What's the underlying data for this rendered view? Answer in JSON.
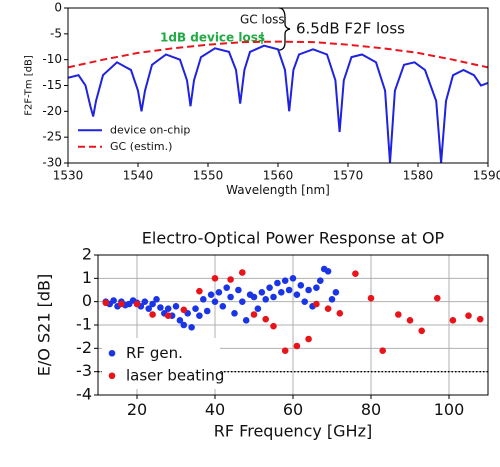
{
  "chart_data": [
    {
      "type": "line",
      "xlabel": "Wavelength [nm]",
      "ylabel": "F2F-Tm [dB]",
      "xlim": [
        1530,
        1590
      ],
      "xticks": [
        1530,
        1540,
        1550,
        1560,
        1570,
        1580,
        1590
      ],
      "ylim": [
        -30,
        0
      ],
      "yticks": [
        0,
        -5,
        -10,
        -15,
        -20,
        -25,
        -30
      ],
      "grid": false,
      "legend": "lower left",
      "annotations": [
        "GC loss",
        "1dB device loss",
        "6.5dB F2F loss"
      ],
      "series": [
        {
          "name": "device on-chip",
          "color": "#1f22e0",
          "linestyle": "solid",
          "x": [
            1530,
            1531.5,
            1532.5,
            1533.2,
            1533.6,
            1534,
            1535,
            1537,
            1539,
            1540,
            1540.5,
            1541,
            1542,
            1544,
            1546,
            1547,
            1547.5,
            1548,
            1549,
            1551,
            1553,
            1554,
            1554.6,
            1555.2,
            1556,
            1558,
            1560,
            1561,
            1561.6,
            1562.2,
            1563,
            1565,
            1567,
            1568.2,
            1568.8,
            1569.4,
            1570.5,
            1572,
            1574,
            1575.3,
            1576,
            1576.7,
            1578,
            1579.5,
            1581,
            1582.6,
            1583.3,
            1584,
            1585,
            1586.5,
            1588,
            1589,
            1590
          ],
          "values": [
            -13.5,
            -13,
            -15,
            -19,
            -21,
            -18,
            -13,
            -10.5,
            -12,
            -16,
            -20,
            -16,
            -11,
            -9,
            -10,
            -14,
            -19,
            -14,
            -9.5,
            -7.8,
            -8.5,
            -12,
            -18.5,
            -12,
            -8.5,
            -7.3,
            -8,
            -12,
            -20,
            -12,
            -9,
            -8,
            -9,
            -14,
            -24,
            -14,
            -9.5,
            -9,
            -10.5,
            -16,
            -30,
            -16,
            -11,
            -10.5,
            -12,
            -18,
            -30,
            -18,
            -13,
            -12,
            -13,
            -15,
            -14.5
          ]
        },
        {
          "name": "GC (estim.)",
          "color": "#e8161c",
          "linestyle": "dashed",
          "x": [
            1530,
            1535,
            1540,
            1545,
            1550,
            1555,
            1560,
            1565,
            1570,
            1575,
            1580,
            1585,
            1590
          ],
          "values": [
            -11.5,
            -10.0,
            -8.7,
            -7.8,
            -7.1,
            -6.6,
            -6.5,
            -6.6,
            -7.1,
            -7.8,
            -8.7,
            -10.0,
            -11.5
          ]
        }
      ]
    },
    {
      "type": "scatter",
      "title": "Electro-Optical Power Response at OP",
      "xlabel": "RF Frequency [GHz]",
      "ylabel": "E/O S21 [dB]",
      "xlim": [
        10,
        110
      ],
      "xticks": [
        20,
        40,
        60,
        80,
        100
      ],
      "ylim": [
        -4,
        2
      ],
      "yticks": [
        2,
        1,
        0,
        -1,
        -2,
        -3,
        -4
      ],
      "grid": true,
      "legend": "lower left",
      "hline": -3,
      "series": [
        {
          "name": "RF gen.",
          "color": "#1a35e6",
          "x": [
            12,
            13,
            14,
            15,
            16,
            17,
            18,
            19,
            20,
            21,
            22,
            23,
            24,
            25,
            26,
            27,
            28,
            29,
            30,
            31,
            32,
            33,
            34,
            35,
            36,
            37,
            38,
            39,
            40,
            41,
            42,
            43,
            44,
            45,
            46,
            47,
            48,
            49,
            50,
            51,
            52,
            53,
            54,
            55,
            56,
            57,
            58,
            59,
            60,
            61,
            62,
            63,
            64,
            65,
            66,
            67,
            68,
            69,
            70,
            71
          ],
          "values": [
            0,
            -0.1,
            0.05,
            -0.2,
            0,
            -0.15,
            -0.1,
            0.05,
            -0.05,
            -0.2,
            0,
            -0.3,
            -0.1,
            0.1,
            -0.25,
            -0.5,
            -0.3,
            -0.6,
            -0.2,
            -0.8,
            -1.0,
            -0.5,
            -1.1,
            -0.3,
            -0.6,
            0.1,
            -0.4,
            0.3,
            0,
            0.4,
            -0.2,
            0.6,
            0.2,
            -0.5,
            0.5,
            0,
            -0.8,
            0.3,
            0.2,
            -0.3,
            0.4,
            0.1,
            0.6,
            0.2,
            0.8,
            0.4,
            0.9,
            0.5,
            1.0,
            0.3,
            0.7,
            0,
            0.5,
            -0.2,
            0.6,
            0.9,
            1.4,
            1.3,
            0.1,
            0.4
          ]
        },
        {
          "name": "laser beating",
          "color": "#e8141a",
          "x": [
            12,
            16,
            20,
            24,
            28,
            32,
            36,
            40,
            44,
            47,
            50,
            53,
            55,
            58,
            61,
            64,
            66,
            69,
            72,
            76,
            80,
            83,
            87,
            90,
            93,
            97,
            101,
            105,
            108
          ],
          "values": [
            -0.05,
            -0.1,
            -0.1,
            -0.55,
            -0.6,
            -0.35,
            0.45,
            1.0,
            0.95,
            1.25,
            -0.55,
            -0.75,
            -1.05,
            -2.1,
            -1.9,
            -1.6,
            -0.1,
            -0.3,
            -0.5,
            1.2,
            0.15,
            -2.1,
            -0.55,
            -0.8,
            -1.25,
            0.15,
            -0.8,
            -0.6,
            -0.75
          ]
        }
      ]
    }
  ]
}
